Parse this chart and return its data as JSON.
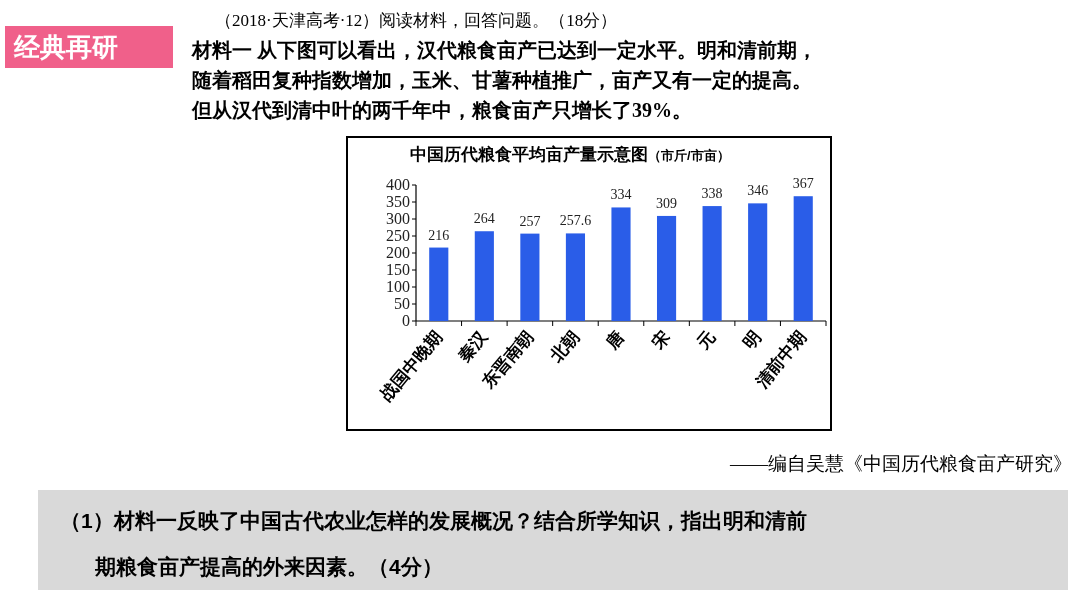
{
  "chart_data": {
    "type": "bar",
    "title": "中国历代粮食平均亩产量示意图",
    "subtitle": "（市斤/市亩）",
    "categories": [
      "战国中晚期",
      "秦汉",
      "东晋南朝",
      "北朝",
      "唐",
      "宋",
      "元",
      "明",
      "清前中期"
    ],
    "values": [
      216,
      264,
      257,
      257.6,
      334,
      309,
      338,
      346,
      367
    ],
    "color": "#2a5de8",
    "ylim": [
      0,
      400
    ],
    "yticks": [
      0,
      50,
      100,
      150,
      200,
      250,
      300,
      350,
      400
    ],
    "data_labels": true,
    "grid": false,
    "annotations": [
      "经典再研",
      "（2018·天津高考·12）阅读材料，回答问题。（18分）",
      "材料一  从下图可以看出，汉代粮食亩产已达到一定水平。明和清前期，",
      "随着稻田复种指数增加，玉米、甘薯种植推广，亩产又有一定的提高。",
      "但从汉代到清中叶的两千年中，粮食亩产只增长了39%。",
      "——编自吴慧《中国历代粮食亩产研究》",
      "（1）材料一反映了中国古代农业怎样的发展概况？结合所学知识，指出明和清前",
      "期粮食亩产提高的外来因素。（4分）"
    ]
  }
}
